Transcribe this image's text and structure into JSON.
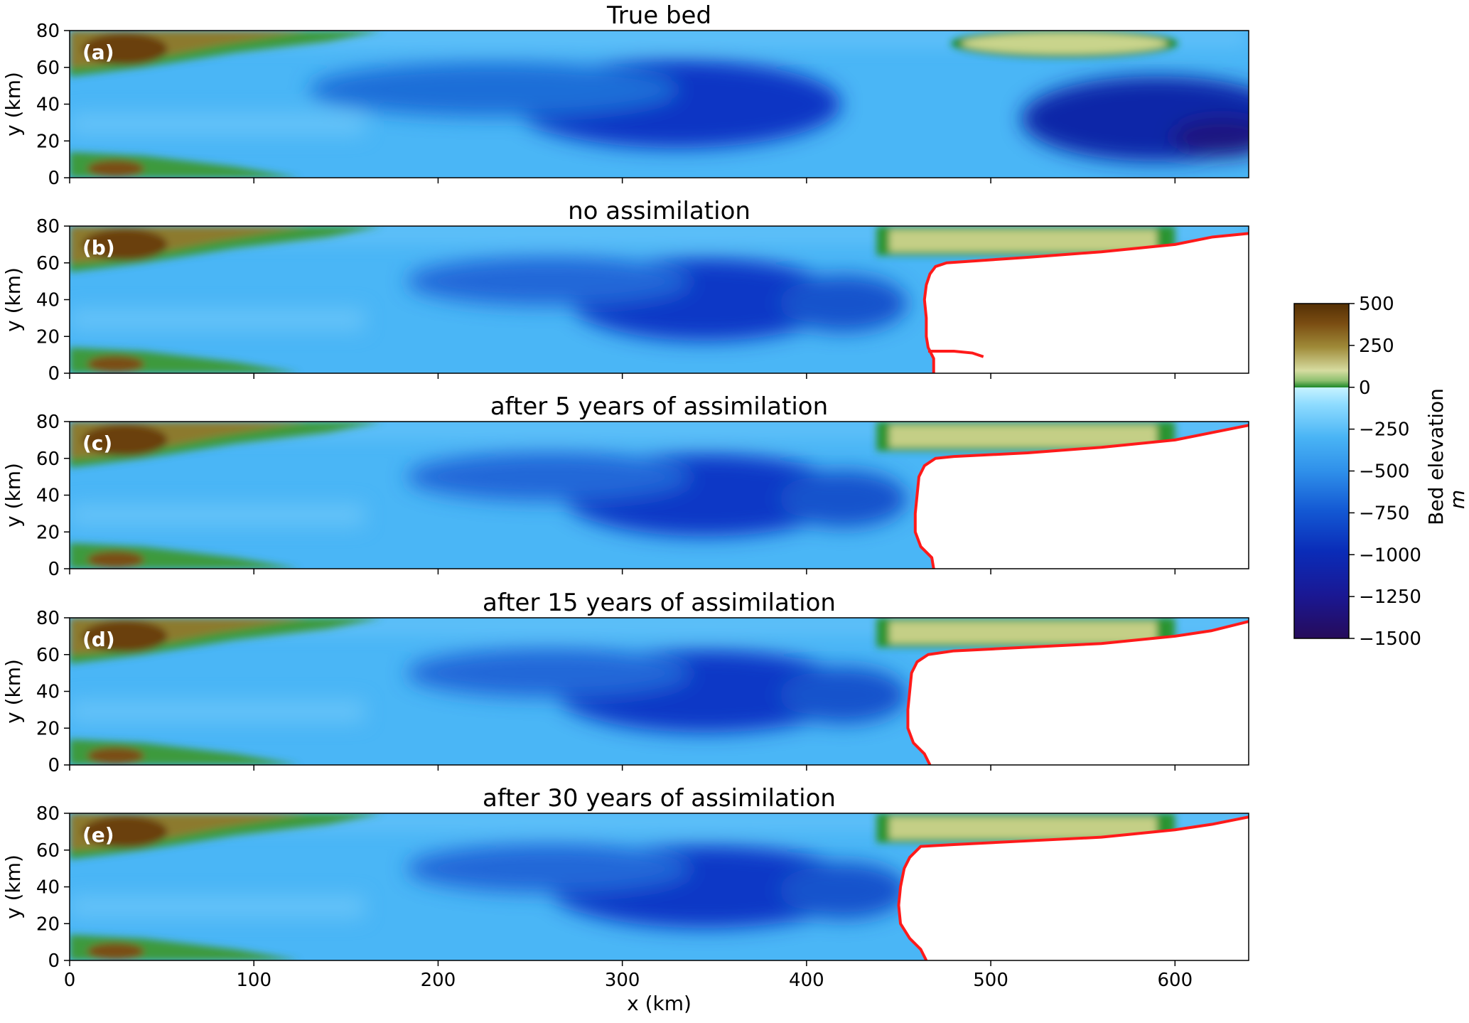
{
  "chart_data": {
    "type": "heatmap",
    "xlabel": "x (km)",
    "xlim": [
      0,
      640
    ],
    "xticks": [
      0,
      100,
      200,
      300,
      400,
      500,
      600
    ],
    "colorbar": {
      "label": "Bed elevation",
      "unit": "m",
      "range": [
        -1500,
        500
      ],
      "ticks": [
        500,
        250,
        0,
        -250,
        -500,
        -750,
        -1000,
        -1250,
        -1500
      ],
      "tick_labels": [
        "500",
        "250",
        "0",
        "−250",
        "−500",
        "−750",
        "−1000",
        "−1250",
        "−1500"
      ]
    },
    "grounding_line_color": "#ff1a1a",
    "panels": [
      {
        "tag": "(a)",
        "title": "True bed",
        "ylabel": "y (km)",
        "ylim": [
          0,
          80
        ],
        "yticks": [
          0,
          20,
          40,
          60,
          80
        ],
        "grounding_line": []
      },
      {
        "tag": "(b)",
        "title": "no assimilation",
        "ylabel": "y (km)",
        "ylim": [
          0,
          80
        ],
        "yticks": [
          0,
          20,
          40,
          60,
          80
        ],
        "grounding_line": [
          [
            469,
            0
          ],
          [
            469,
            8
          ],
          [
            466,
            14
          ],
          [
            465,
            20
          ],
          [
            465,
            30
          ],
          [
            464,
            40
          ],
          [
            465,
            48
          ],
          [
            467,
            54
          ],
          [
            470,
            58
          ],
          [
            476,
            60
          ],
          [
            520,
            63
          ],
          [
            560,
            66
          ],
          [
            600,
            70
          ],
          [
            620,
            74
          ],
          [
            640,
            76
          ]
        ],
        "grounding_line_branch": [
          [
            466,
            12
          ],
          [
            480,
            12
          ],
          [
            490,
            11
          ],
          [
            496,
            9
          ]
        ]
      },
      {
        "tag": "(c)",
        "title": "after 5 years of assimilation",
        "ylabel": "y (km)",
        "ylim": [
          0,
          80
        ],
        "yticks": [
          0,
          20,
          40,
          60,
          80
        ],
        "grounding_line": [
          [
            469,
            0
          ],
          [
            468,
            6
          ],
          [
            462,
            12
          ],
          [
            459,
            20
          ],
          [
            459,
            30
          ],
          [
            460,
            40
          ],
          [
            461,
            50
          ],
          [
            464,
            56
          ],
          [
            470,
            60
          ],
          [
            480,
            61
          ],
          [
            520,
            63
          ],
          [
            560,
            66
          ],
          [
            600,
            70
          ],
          [
            620,
            74
          ],
          [
            640,
            78
          ]
        ]
      },
      {
        "tag": "(d)",
        "title": "after 15 years of assimilation",
        "ylabel": "y (km)",
        "ylim": [
          0,
          80
        ],
        "yticks": [
          0,
          20,
          40,
          60,
          80
        ],
        "grounding_line": [
          [
            467,
            0
          ],
          [
            464,
            6
          ],
          [
            458,
            12
          ],
          [
            455,
            20
          ],
          [
            455,
            30
          ],
          [
            456,
            40
          ],
          [
            457,
            50
          ],
          [
            460,
            56
          ],
          [
            466,
            60
          ],
          [
            480,
            62
          ],
          [
            520,
            64
          ],
          [
            560,
            66
          ],
          [
            600,
            70
          ],
          [
            620,
            73
          ],
          [
            640,
            78
          ]
        ]
      },
      {
        "tag": "(e)",
        "title": "after 30 years of assimilation",
        "ylabel": "y (km)",
        "ylim": [
          0,
          80
        ],
        "yticks": [
          0,
          20,
          40,
          60,
          80
        ],
        "grounding_line": [
          [
            465,
            0
          ],
          [
            462,
            6
          ],
          [
            456,
            12
          ],
          [
            451,
            20
          ],
          [
            450,
            30
          ],
          [
            451,
            40
          ],
          [
            453,
            50
          ],
          [
            456,
            56
          ],
          [
            462,
            62
          ],
          [
            480,
            63
          ],
          [
            520,
            65
          ],
          [
            560,
            67
          ],
          [
            600,
            71
          ],
          [
            620,
            74
          ],
          [
            640,
            78
          ]
        ]
      }
    ]
  }
}
